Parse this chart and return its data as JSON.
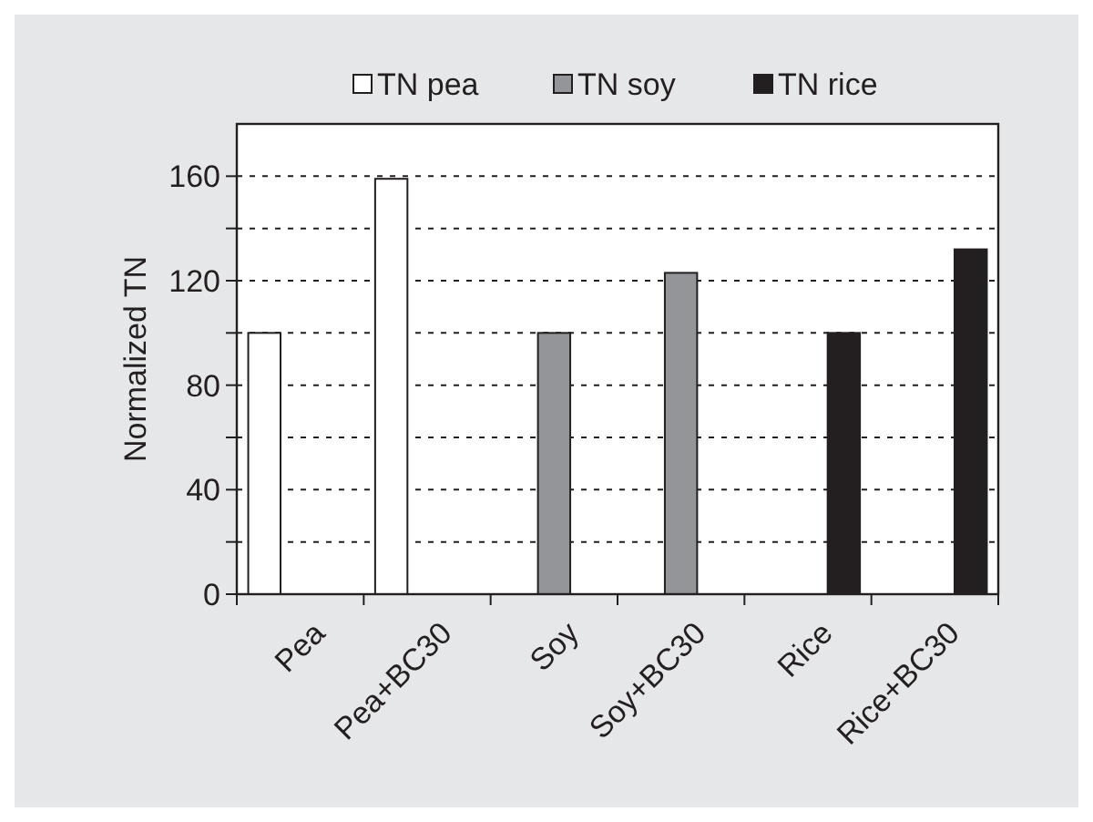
{
  "chart_data": {
    "type": "bar",
    "ylabel": "Normalized TN",
    "categories": [
      "Pea",
      "Pea+BC30",
      "Soy",
      "Soy+BC30",
      "Rice",
      "Rice+BC30"
    ],
    "series": [
      {
        "name": "TN pea",
        "color": "#ffffff",
        "values": [
          100,
          159,
          null,
          null,
          null,
          null
        ]
      },
      {
        "name": "TN soy",
        "color": "#939598",
        "values": [
          null,
          null,
          100,
          123,
          null,
          null
        ]
      },
      {
        "name": "TN rice",
        "color": "#231f20",
        "values": [
          null,
          null,
          null,
          null,
          100,
          132
        ]
      }
    ],
    "ylim": [
      0,
      180
    ],
    "yticks": [
      0,
      {
        "value": 20,
        "label": null
      },
      40,
      {
        "value": 60,
        "label": null
      },
      80,
      {
        "value": 100,
        "label": null
      },
      120,
      {
        "value": 140,
        "label": null
      },
      160
    ],
    "grid": "y",
    "legend": "top"
  }
}
